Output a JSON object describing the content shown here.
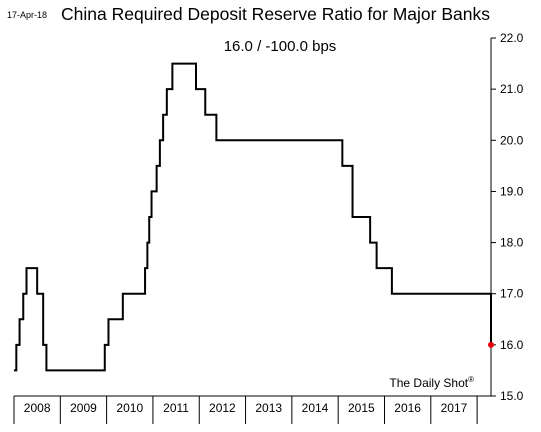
{
  "header": {
    "date": "17-Apr-18",
    "title": "China Required Deposit Reserve Ratio for Major Banks",
    "subtitle": "16.0  /  -100.0 bps"
  },
  "footer": {
    "source": "The Daily Shot",
    "source_mark": "®"
  },
  "colors": {
    "line": "#000000",
    "last_point": "#e8000d",
    "axis": "#000000"
  },
  "chart_data": {
    "type": "line",
    "title": "China Required Deposit Reserve Ratio for Major Banks",
    "xlabel": "",
    "ylabel": "",
    "x_ticks": [
      "2008",
      "2009",
      "2010",
      "2011",
      "2012",
      "2013",
      "2014",
      "2015",
      "2016",
      "2017"
    ],
    "xlim": [
      2008.0,
      2018.3
    ],
    "ylim": [
      15.0,
      22.0
    ],
    "y_ticks": [
      "15.0",
      "16.0",
      "17.0",
      "18.0",
      "19.0",
      "20.0",
      "21.0",
      "22.0"
    ],
    "y_axis_side": "right",
    "grid": false,
    "legend": "none",
    "series": [
      {
        "step": true,
        "points": [
          [
            2008.0,
            15.5
          ],
          [
            2008.05,
            16.0
          ],
          [
            2008.12,
            16.5
          ],
          [
            2008.2,
            17.0
          ],
          [
            2008.27,
            17.5
          ],
          [
            2008.5,
            17.0
          ],
          [
            2008.63,
            16.0
          ],
          [
            2008.7,
            15.5
          ],
          [
            2009.96,
            16.0
          ],
          [
            2010.04,
            16.5
          ],
          [
            2010.35,
            17.0
          ],
          [
            2010.83,
            17.5
          ],
          [
            2010.88,
            18.0
          ],
          [
            2010.92,
            18.5
          ],
          [
            2010.97,
            19.0
          ],
          [
            2011.08,
            19.5
          ],
          [
            2011.15,
            20.0
          ],
          [
            2011.22,
            20.5
          ],
          [
            2011.3,
            21.0
          ],
          [
            2011.42,
            21.5
          ],
          [
            2011.93,
            21.0
          ],
          [
            2012.13,
            20.5
          ],
          [
            2012.37,
            20.0
          ],
          [
            2015.09,
            19.5
          ],
          [
            2015.31,
            18.5
          ],
          [
            2015.69,
            18.0
          ],
          [
            2015.83,
            17.5
          ],
          [
            2016.16,
            17.0
          ],
          [
            2018.3,
            16.0
          ]
        ]
      }
    ],
    "last_value": 16.0,
    "last_change": "-100.0 bps"
  }
}
